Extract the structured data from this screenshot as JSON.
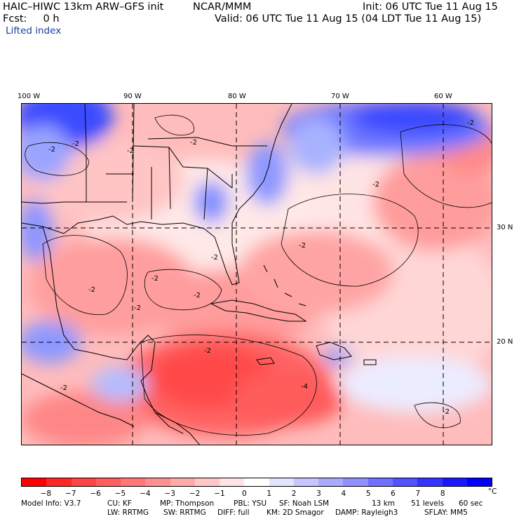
{
  "header": {
    "model": "HAIC–HIWC 13km ARW–GFS init",
    "org": "NCAR/MMM",
    "init": "Init: 06 UTC Tue 11 Aug 15",
    "fcst": "Fcst:     0 h",
    "valid": "Valid: 06 UTC Tue 11 Aug 15 (04 LDT Tue 11 Aug 15)",
    "field": "Lifted index"
  },
  "map": {
    "lon_labels": [
      "100 W",
      "90 W",
      "80 W",
      "70 W",
      "60 W"
    ],
    "lat_labels": [
      "30 N",
      "20 N"
    ],
    "contour_labels": [
      "-2",
      "-2",
      "-2",
      "-2",
      "-2",
      "-2",
      "-2",
      "-2",
      "-2",
      "-2",
      "-2",
      "-2",
      "-2",
      "-4",
      "-2",
      "-2"
    ]
  },
  "colorbar": {
    "labels": [
      "−8",
      "−7",
      "−6",
      "−5",
      "−4",
      "−3",
      "−2",
      "−1",
      "0",
      "1",
      "2",
      "3",
      "4",
      "5",
      "6",
      "7",
      "8"
    ],
    "unit": "°C",
    "colors": [
      "#ff0000",
      "#ff2626",
      "#ff4444",
      "#ff5e5e",
      "#ff7777",
      "#ff9090",
      "#ffaaaa",
      "#ffc6c6",
      "#ffe4e4",
      "#ffffff",
      "#e4e4ff",
      "#c6c6ff",
      "#aaaaff",
      "#9090ff",
      "#7070ff",
      "#5252ff",
      "#3434ff",
      "#1818ff",
      "#0000ff"
    ]
  },
  "model_info": {
    "line1": [
      "Model Info: V3.7",
      "CU: KF",
      "MP: Thompson",
      "PBL: YSU",
      "SF: Noah LSM",
      "13 km",
      "51 levels",
      "60 sec"
    ],
    "line2": [
      "LW: RRTMG",
      "SW: RRTMG",
      "DIFF: full",
      "KM: 2D Smagor",
      "DAMP: Rayleigh3",
      "SFLAY: MM5"
    ]
  }
}
